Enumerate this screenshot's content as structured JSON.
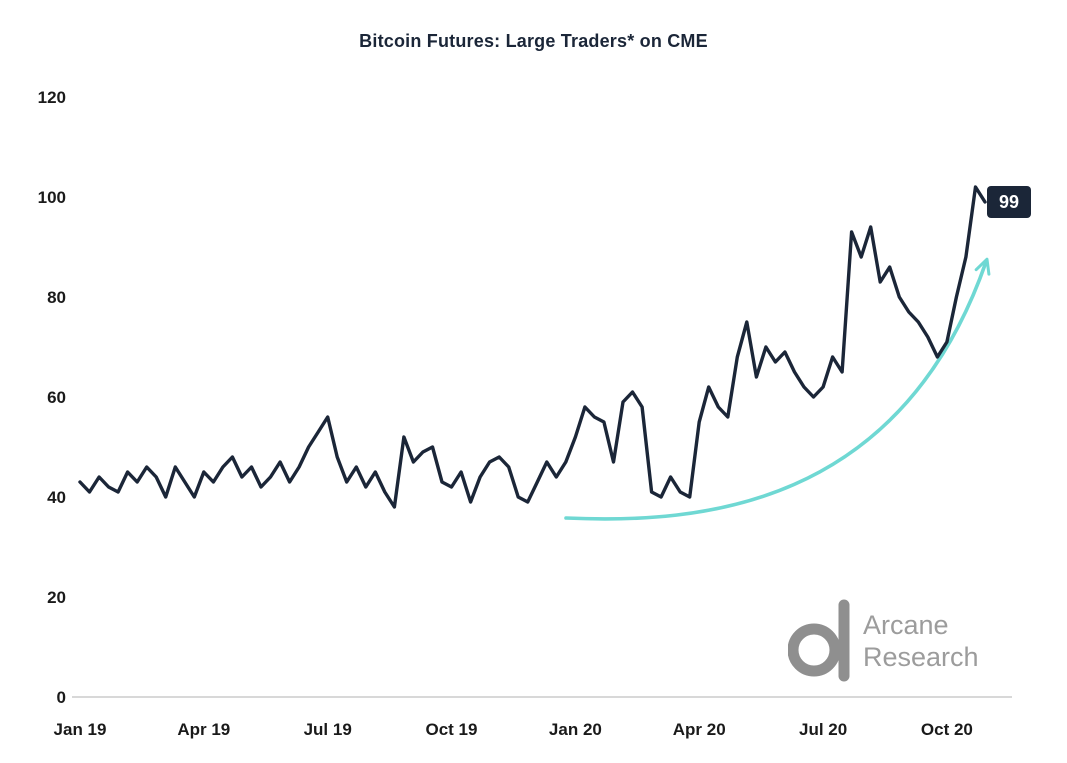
{
  "chart_data": {
    "type": "line",
    "title": "Bitcoin Futures: Large Traders* on CME",
    "xlabel": "",
    "ylabel": "",
    "ylim": [
      0,
      120
    ],
    "grid": false,
    "legend": "none",
    "y_ticks": [
      0,
      20,
      40,
      60,
      80,
      100,
      120
    ],
    "x_tick_labels": [
      "Jan 19",
      "Apr 19",
      "Jul 19",
      "Oct 19",
      "Jan 20",
      "Apr 20",
      "Jul 20",
      "Oct 20"
    ],
    "x_tick_indices": [
      0,
      13,
      26,
      39,
      52,
      65,
      78,
      91
    ],
    "series": [
      {
        "name": "Large traders on CME",
        "values": [
          43,
          41,
          44,
          42,
          41,
          45,
          43,
          46,
          44,
          40,
          46,
          43,
          40,
          45,
          43,
          46,
          48,
          44,
          46,
          42,
          44,
          47,
          43,
          46,
          50,
          53,
          56,
          48,
          43,
          46,
          42,
          45,
          41,
          38,
          52,
          47,
          49,
          50,
          43,
          42,
          45,
          39,
          44,
          47,
          48,
          46,
          40,
          39,
          43,
          47,
          44,
          47,
          52,
          58,
          56,
          55,
          47,
          59,
          61,
          58,
          41,
          40,
          44,
          41,
          40,
          55,
          62,
          58,
          56,
          68,
          75,
          64,
          70,
          67,
          69,
          65,
          62,
          60,
          62,
          68,
          65,
          93,
          88,
          94,
          83,
          86,
          80,
          77,
          75,
          72,
          68,
          71,
          80,
          88,
          102,
          99
        ]
      }
    ],
    "end_label": "99",
    "annotations": [
      {
        "type": "curved-arrow",
        "note": "upward trend arrow toward latest value"
      },
      {
        "type": "value-badge",
        "text": "99"
      }
    ],
    "colors": {
      "line": "#1b2638",
      "arrow": "#6fd8d3",
      "axis": "#d8d8d8",
      "tick_text": "#1a1a1a",
      "badge_bg": "#1b2638",
      "badge_text": "#ffffff",
      "logo_gray": "#8f8f8f"
    }
  },
  "logo": {
    "line1": "Arcane",
    "line2": "Research"
  }
}
